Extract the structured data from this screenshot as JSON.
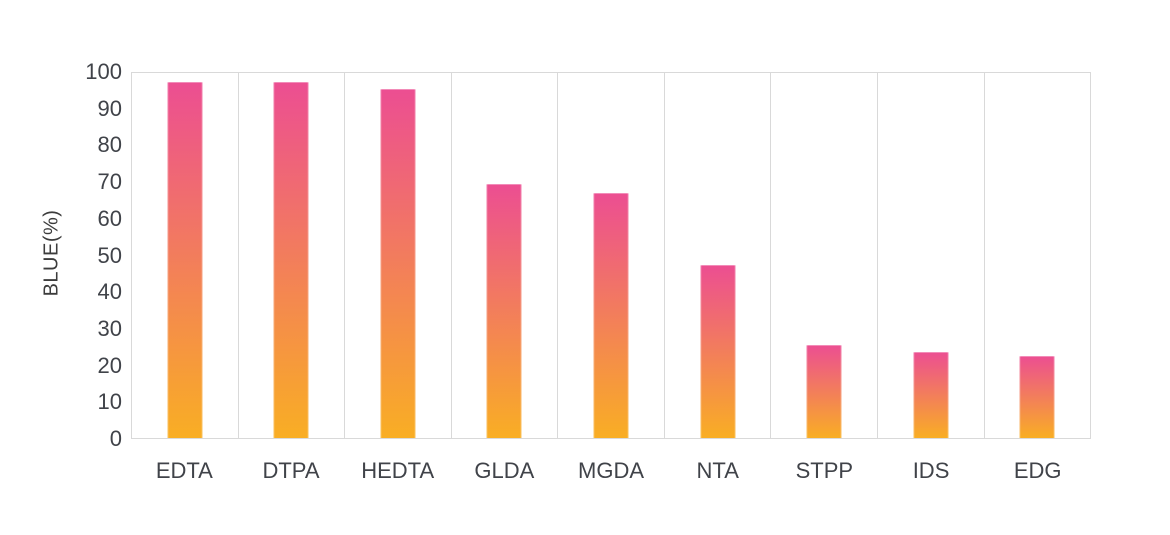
{
  "chart_data": {
    "type": "bar",
    "title": "",
    "categories": [
      "EDTA",
      "DTPA",
      "HEDTA",
      "GLDA",
      "MGDA",
      "NTA",
      "STPP",
      "IDS",
      "EDG"
    ],
    "values": [
      97.5,
      97.5,
      95.5,
      69.5,
      67,
      47.5,
      25.5,
      23.5,
      22.5
    ],
    "xlabel": "",
    "ylabel": "BLUE(%)",
    "ylim": [
      0,
      100
    ],
    "yticks": [
      0,
      10,
      20,
      30,
      40,
      50,
      60,
      70,
      80,
      90,
      100
    ],
    "legend_position": "none",
    "grid": "vertical-column-separators",
    "bar_gradient_top": "#ec4e92",
    "bar_gradient_bottom": "#f9ae24",
    "colors": {
      "axis_text": "#404349",
      "axis_title_text": "#3c3c3c",
      "grid_line": "#d9d9d9",
      "background": "#ffffff"
    }
  }
}
